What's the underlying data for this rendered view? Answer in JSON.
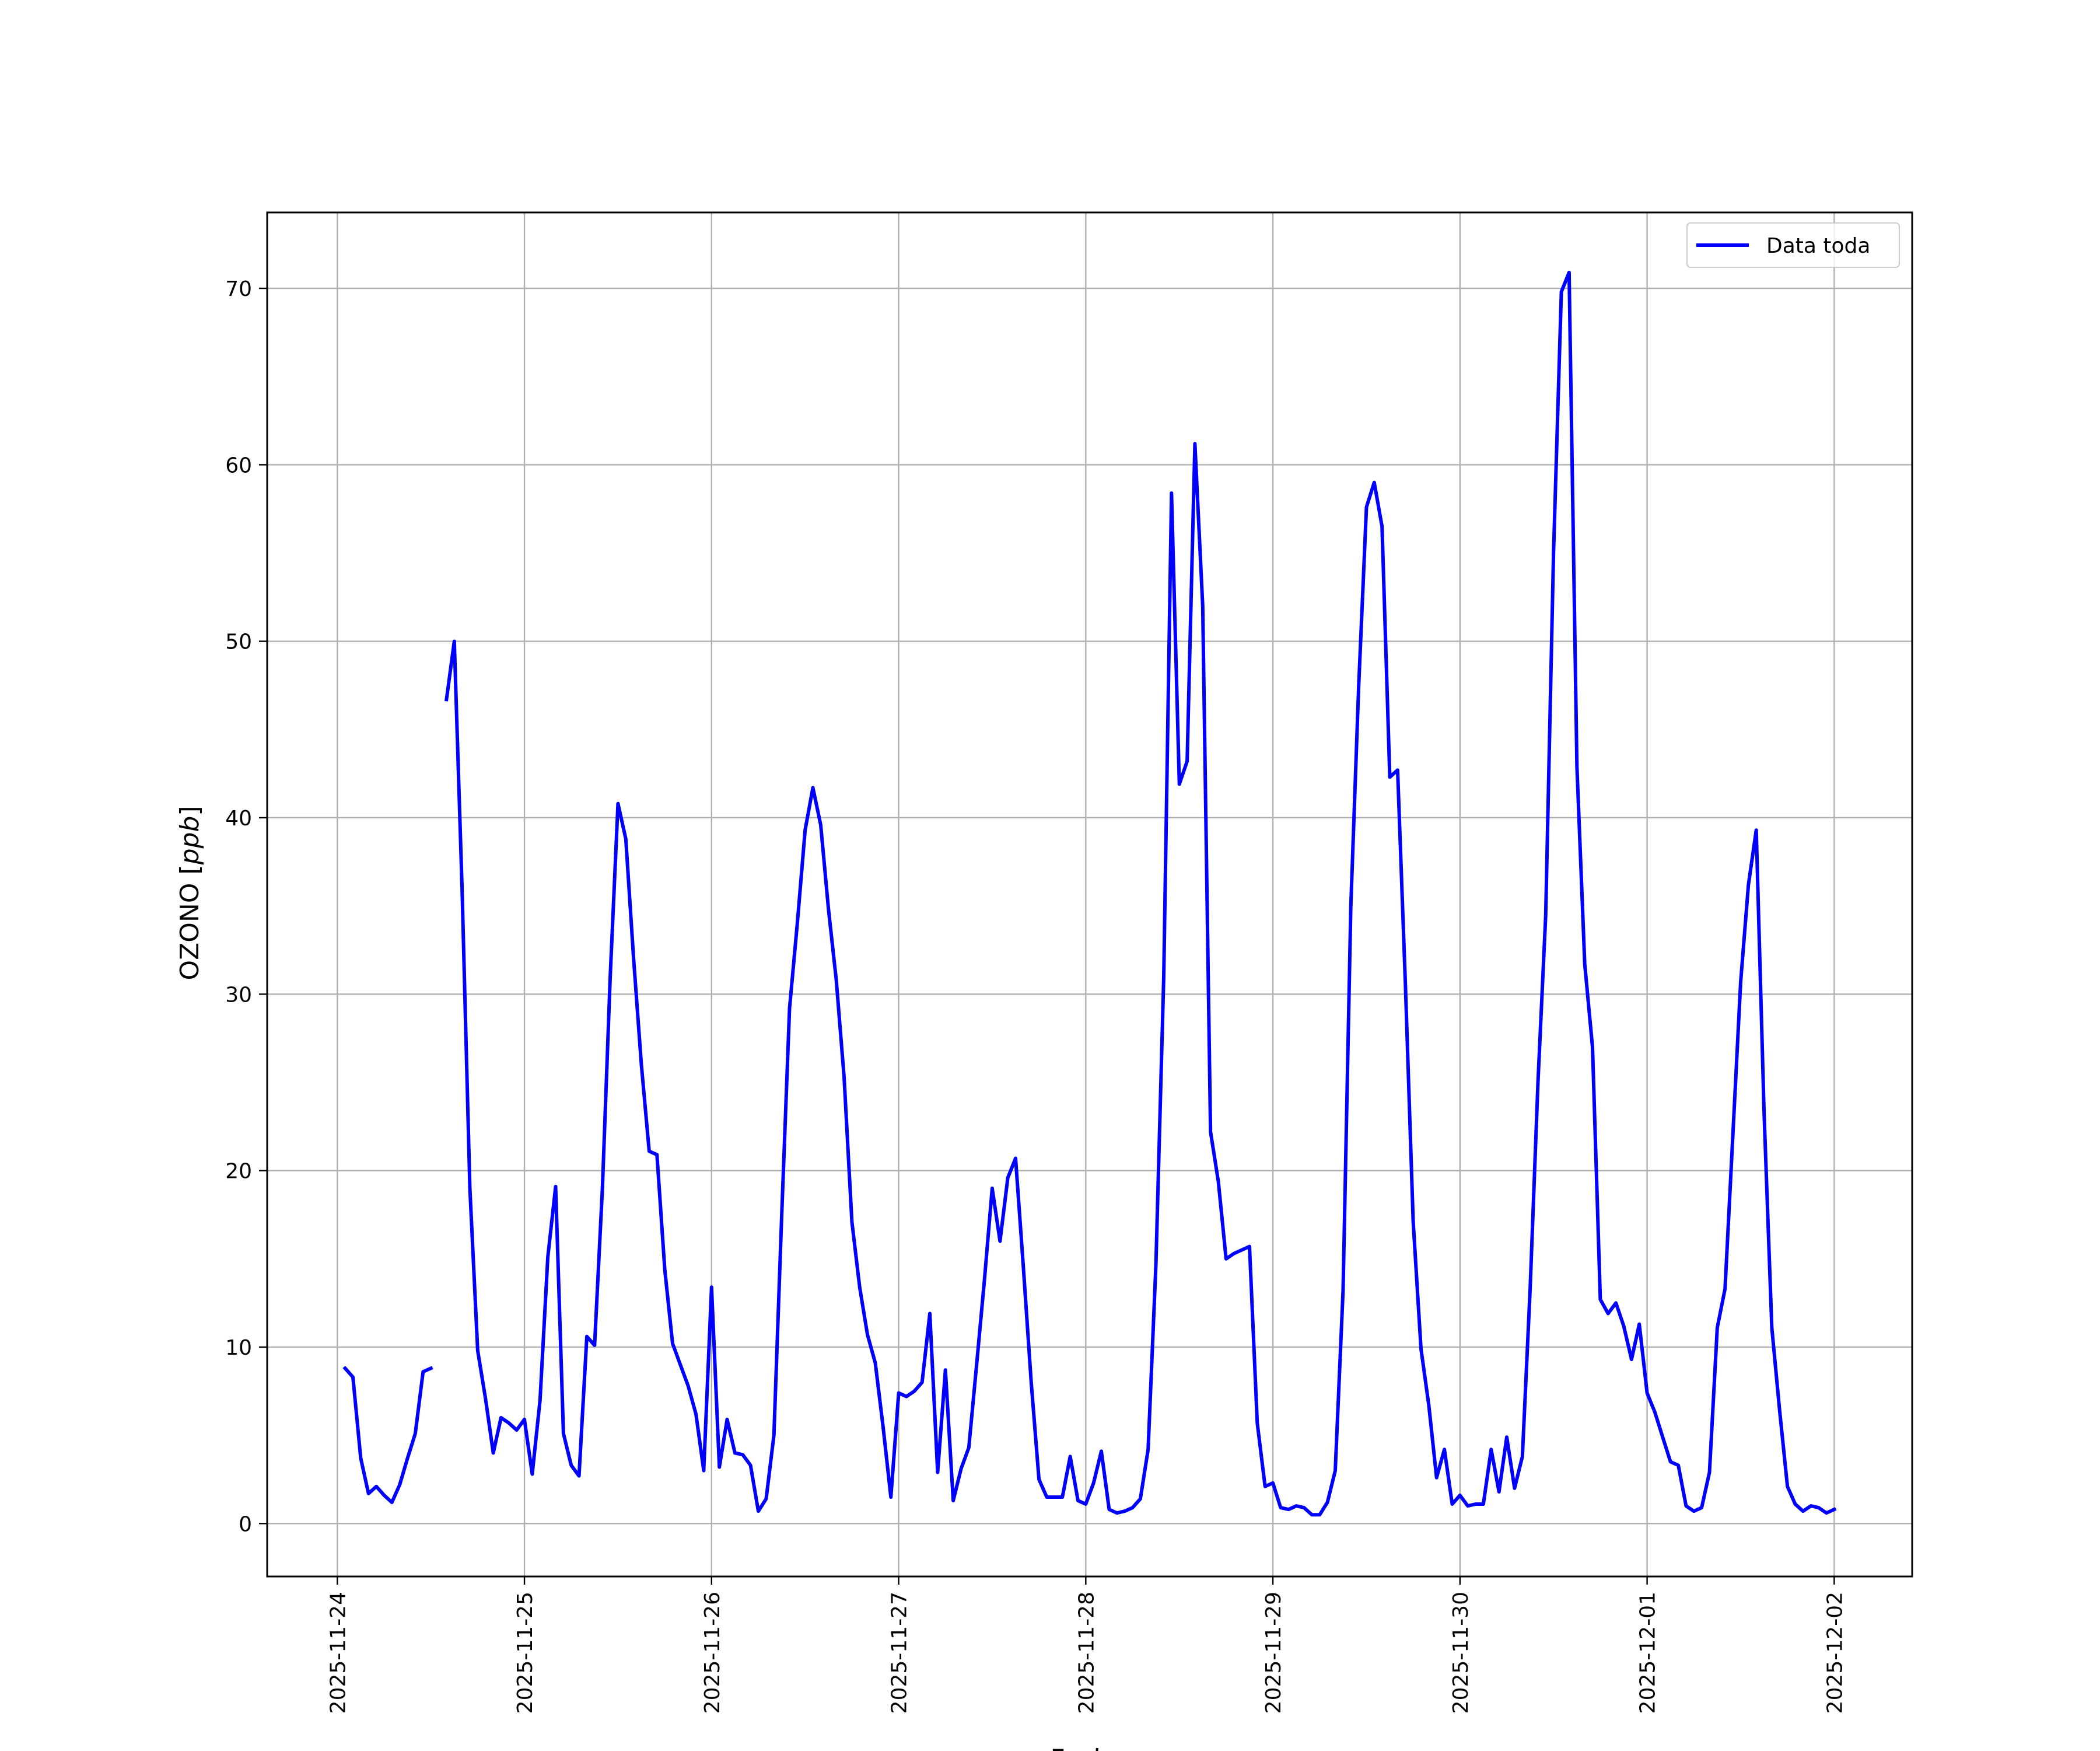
{
  "chart_data": {
    "type": "line",
    "title": "",
    "xlabel": "Fecha",
    "ylabel": "OZONO [ppb]",
    "ylabel_main": "OZONO ",
    "ylabel_open": "[",
    "ylabel_unit": "ppb",
    "ylabel_close": "]",
    "x_start": "2025-11-24",
    "xlim": [
      "2025-11-23 15:00",
      "2025-12-02 10:00"
    ],
    "ylim": [
      -3,
      74.3
    ],
    "x_ticks": [
      "2025-11-24",
      "2025-11-25",
      "2025-11-26",
      "2025-11-27",
      "2025-11-28",
      "2025-11-29",
      "2025-11-30",
      "2025-12-01",
      "2025-12-02"
    ],
    "y_ticks": [
      0,
      10,
      20,
      30,
      40,
      50,
      60,
      70
    ],
    "grid": true,
    "legend_position": "top-right",
    "line_color": "#0000ff",
    "series": [
      {
        "name": "Data toda",
        "segments": [
          [
            [
              1,
              8.8
            ],
            [
              2,
              8.3
            ],
            [
              3,
              3.7
            ],
            [
              4,
              1.7
            ],
            [
              5,
              2.1
            ],
            [
              6,
              1.6
            ],
            [
              7,
              1.2
            ],
            [
              8,
              2.2
            ],
            [
              9,
              3.7
            ],
            [
              10,
              5.1
            ],
            [
              11,
              8.6
            ],
            [
              12,
              8.8
            ]
          ],
          [
            [
              14,
              46.7
            ],
            [
              15,
              50.0
            ],
            [
              16,
              36.0
            ],
            [
              17,
              19.0
            ],
            [
              18,
              9.8
            ],
            [
              19,
              7.1
            ],
            [
              20,
              4.0
            ],
            [
              21,
              6.0
            ],
            [
              22,
              5.7
            ],
            [
              23,
              5.3
            ],
            [
              24,
              5.9
            ],
            [
              25,
              2.8
            ],
            [
              26,
              7.0
            ],
            [
              27,
              15.1
            ],
            [
              28,
              19.1
            ],
            [
              29,
              5.1
            ],
            [
              30,
              3.3
            ],
            [
              31,
              2.7
            ],
            [
              32,
              10.6
            ],
            [
              33,
              10.1
            ],
            [
              34,
              19.0
            ],
            [
              35,
              31.0
            ],
            [
              36,
              40.8
            ],
            [
              37,
              38.8
            ],
            [
              38,
              32.0
            ],
            [
              39,
              26.0
            ],
            [
              40,
              21.1
            ],
            [
              41,
              20.9
            ],
            [
              42,
              14.4
            ],
            [
              43,
              10.2
            ],
            [
              44,
              9.0
            ],
            [
              45,
              7.8
            ],
            [
              46,
              6.2
            ],
            [
              47,
              3.0
            ],
            [
              48,
              13.4
            ],
            [
              49,
              3.2
            ],
            [
              50,
              5.9
            ],
            [
              51,
              4.0
            ],
            [
              52,
              3.9
            ],
            [
              53,
              3.3
            ],
            [
              54,
              0.7
            ],
            [
              55,
              1.4
            ],
            [
              56,
              5.0
            ],
            [
              57,
              17.5
            ],
            [
              58,
              29.2
            ],
            [
              59,
              34.0
            ],
            [
              60,
              39.3
            ],
            [
              61,
              41.7
            ],
            [
              62,
              39.6
            ],
            [
              63,
              34.8
            ],
            [
              64,
              30.8
            ],
            [
              65,
              25.3
            ],
            [
              66,
              17.1
            ],
            [
              67,
              13.4
            ],
            [
              68,
              10.7
            ],
            [
              69,
              9.1
            ],
            [
              70,
              5.5
            ],
            [
              71,
              1.5
            ],
            [
              72,
              7.4
            ],
            [
              73,
              7.2
            ],
            [
              74,
              7.5
            ],
            [
              75,
              8.0
            ],
            [
              76,
              11.9
            ],
            [
              77,
              2.9
            ],
            [
              78,
              8.7
            ],
            [
              79,
              1.3
            ],
            [
              80,
              3.1
            ],
            [
              81,
              4.3
            ],
            [
              82,
              9.0
            ],
            [
              83,
              13.8
            ],
            [
              84,
              19.0
            ],
            [
              85,
              16.0
            ],
            [
              86,
              19.6
            ],
            [
              87,
              20.7
            ],
            [
              88,
              14.5
            ],
            [
              89,
              8.0
            ],
            [
              90,
              2.5
            ],
            [
              91,
              1.5
            ],
            [
              92,
              1.5
            ],
            [
              93,
              1.5
            ],
            [
              94,
              3.8
            ],
            [
              95,
              1.3
            ],
            [
              96,
              1.1
            ],
            [
              97,
              2.3
            ],
            [
              98,
              4.1
            ],
            [
              99,
              0.8
            ],
            [
              100,
              0.6
            ],
            [
              101,
              0.7
            ],
            [
              102,
              0.9
            ],
            [
              103,
              1.4
            ],
            [
              104,
              4.2
            ],
            [
              105,
              14.7
            ],
            [
              106,
              31.0
            ],
            [
              107,
              58.4
            ],
            [
              108,
              41.9
            ],
            [
              109,
              43.2
            ],
            [
              110,
              61.2
            ],
            [
              111,
              52.0
            ],
            [
              112,
              22.2
            ],
            [
              113,
              19.4
            ],
            [
              114,
              15.0
            ],
            [
              115,
              15.3
            ],
            [
              116,
              15.5
            ],
            [
              117,
              15.7
            ],
            [
              118,
              5.7
            ],
            [
              119,
              2.1
            ],
            [
              120,
              2.3
            ],
            [
              121,
              0.9
            ],
            [
              122,
              0.8
            ],
            [
              123,
              1.0
            ],
            [
              124,
              0.9
            ],
            [
              125,
              0.5
            ],
            [
              126,
              0.5
            ],
            [
              127,
              1.2
            ],
            [
              128,
              3.0
            ],
            [
              129,
              13.2
            ],
            [
              130,
              35.0
            ],
            [
              131,
              47.4
            ],
            [
              132,
              57.6
            ],
            [
              133,
              59.0
            ],
            [
              134,
              56.5
            ],
            [
              135,
              42.3
            ],
            [
              136,
              42.7
            ],
            [
              137,
              30.5
            ],
            [
              138,
              17.1
            ],
            [
              139,
              9.9
            ],
            [
              140,
              6.7
            ],
            [
              141,
              2.6
            ],
            [
              142,
              4.2
            ],
            [
              143,
              1.1
            ],
            [
              144,
              1.6
            ],
            [
              145,
              1.0
            ],
            [
              146,
              1.1
            ],
            [
              147,
              1.1
            ],
            [
              148,
              4.2
            ],
            [
              149,
              1.8
            ],
            [
              150,
              4.9
            ],
            [
              151,
              2.0
            ],
            [
              152,
              3.8
            ],
            [
              153,
              13.3
            ],
            [
              154,
              25.0
            ],
            [
              155,
              34.5
            ],
            [
              156,
              55.0
            ],
            [
              157,
              69.8
            ],
            [
              158,
              70.9
            ],
            [
              159,
              42.9
            ],
            [
              160,
              31.7
            ],
            [
              161,
              27.0
            ],
            [
              162,
              12.7
            ],
            [
              163,
              11.9
            ],
            [
              164,
              12.5
            ],
            [
              165,
              11.2
            ],
            [
              166,
              9.3
            ],
            [
              167,
              11.3
            ],
            [
              168,
              7.4
            ],
            [
              169,
              6.3
            ],
            [
              170,
              4.9
            ],
            [
              171,
              3.5
            ],
            [
              172,
              3.3
            ],
            [
              173,
              1.0
            ],
            [
              174,
              0.7
            ],
            [
              175,
              0.9
            ],
            [
              176,
              2.9
            ],
            [
              177,
              11.1
            ],
            [
              178,
              13.3
            ],
            [
              179,
              22.0
            ],
            [
              180,
              30.7
            ],
            [
              181,
              36.2
            ],
            [
              182,
              39.3
            ],
            [
              183,
              23.3
            ],
            [
              184,
              11.1
            ],
            [
              185,
              6.4
            ],
            [
              186,
              2.1
            ],
            [
              187,
              1.1
            ],
            [
              188,
              0.7
            ],
            [
              189,
              1.0
            ],
            [
              190,
              0.9
            ],
            [
              191,
              0.6
            ],
            [
              192,
              0.8
            ]
          ]
        ]
      }
    ]
  }
}
